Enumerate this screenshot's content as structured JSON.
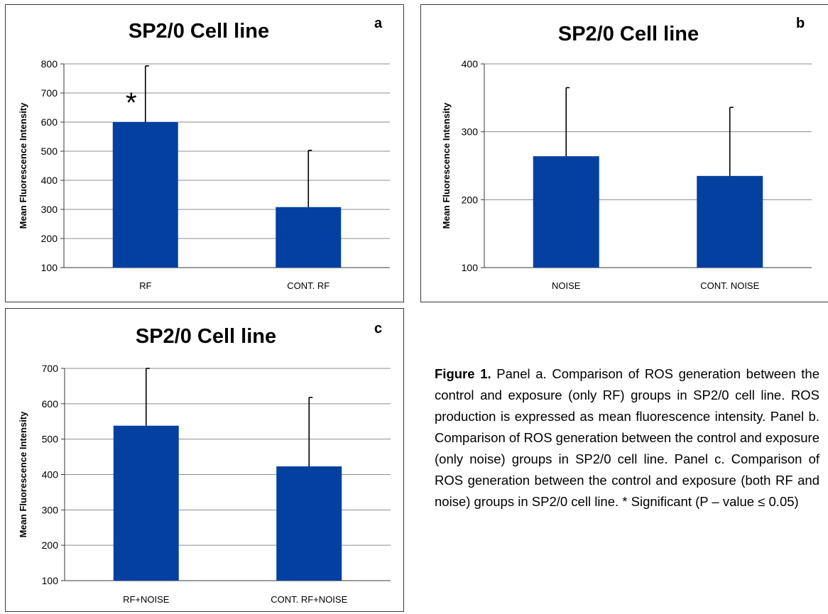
{
  "colors": {
    "bar": "#0340a0",
    "grid": "#8c8c8c",
    "axis": "#3a3a3a",
    "error": "#000000"
  },
  "chart_data": [
    {
      "panel": "a",
      "type": "bar",
      "title": "SP2/0 Cell line",
      "ylabel": "Mean Fluorescence Intensity",
      "ylim": [
        100,
        800
      ],
      "yticks": [
        100,
        200,
        300,
        400,
        500,
        600,
        700,
        800
      ],
      "grid": true,
      "categories": [
        "RF",
        "CONT. RF"
      ],
      "values": [
        600,
        308
      ],
      "error_upper": [
        793,
        503
      ],
      "annotations": [
        {
          "category": "RF",
          "text": "*"
        }
      ]
    },
    {
      "panel": "b",
      "type": "bar",
      "title": "SP2/0 Cell line",
      "ylabel": "Mean Fluorescence Intensity",
      "ylim": [
        100,
        400
      ],
      "yticks": [
        100,
        200,
        300,
        400
      ],
      "grid": true,
      "categories": [
        "NOISE",
        "CONT. NOISE"
      ],
      "values": [
        264,
        235
      ],
      "error_upper": [
        365,
        336
      ],
      "annotations": []
    },
    {
      "panel": "c",
      "type": "bar",
      "title": "SP2/0 Cell line",
      "ylabel": "Mean Fluorescence Intensity",
      "ylim": [
        100,
        700
      ],
      "yticks": [
        100,
        200,
        300,
        400,
        500,
        600,
        700
      ],
      "grid": true,
      "categories": [
        "RF+NOISE",
        "CONT. RF+NOISE"
      ],
      "values": [
        538,
        423
      ],
      "error_upper": [
        700,
        618
      ],
      "annotations": []
    }
  ],
  "caption": {
    "label": "Figure 1.",
    "text": " Panel a. Comparison of ROS generation between the control and exposure (only RF) groups in SP2/0 cell line. ROS production is expressed as mean fluorescence intensity. Panel b. Comparison of ROS generation between the control and exposure (only noise) groups in SP2/0 cell line. Panel c. Comparison of ROS generation between the control and exposure (both RF and noise) groups in SP2/0 cell line. * Significant (P – value ≤ 0.05)"
  }
}
